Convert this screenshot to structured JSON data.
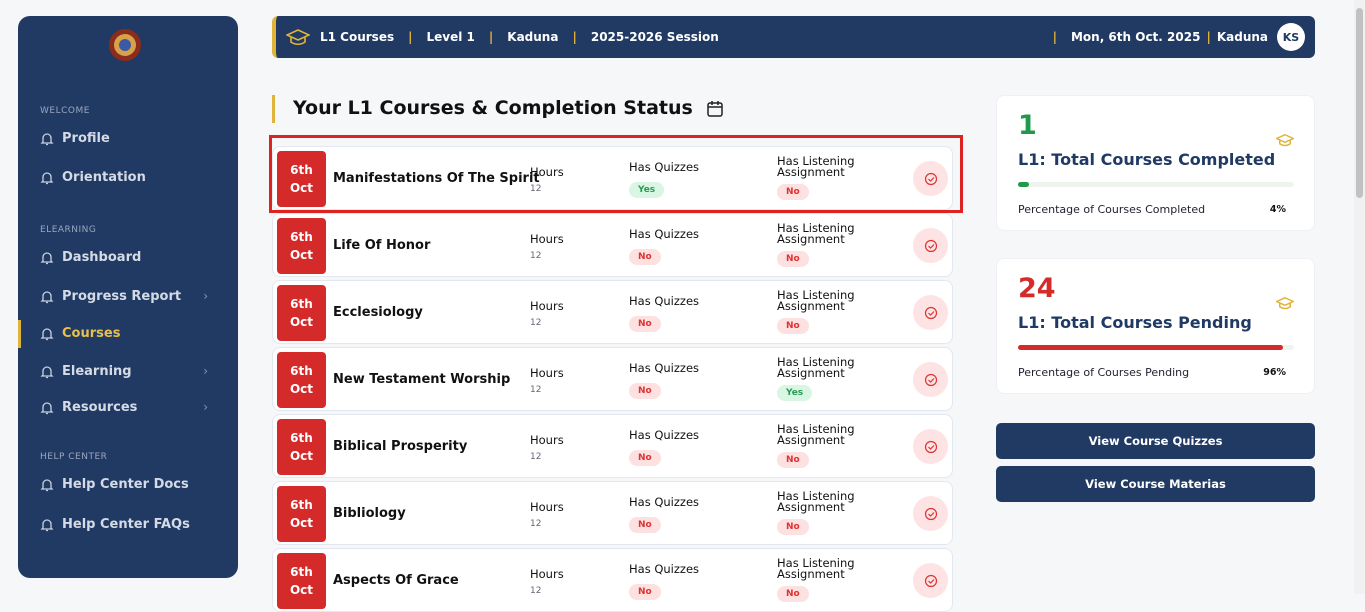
{
  "sidebar": {
    "sections": [
      {
        "heading": "WELCOME",
        "items": [
          "Profile",
          "Orientation"
        ]
      },
      {
        "heading": "ELEARNING",
        "items": [
          "Dashboard",
          "Progress Report",
          "Courses",
          "Elearning",
          "Resources"
        ]
      },
      {
        "heading": "HELP CENTER",
        "items": [
          "Help Center Docs",
          "Help Center FAQs"
        ]
      }
    ]
  },
  "topbar": {
    "items": [
      "L1 Courses",
      "Level 1",
      "Kaduna",
      "2025-2026 Session"
    ],
    "date": "Mon, 6th Oct. 2025",
    "location": "Kaduna",
    "avatar": "KS"
  },
  "main": {
    "title": "Your L1 Courses & Completion Status",
    "labels": {
      "hours": "Hours",
      "quizzes": "Has Quizzes",
      "listening": "Has Listening Assignment"
    },
    "courses": [
      {
        "day": "6th",
        "month": "Oct",
        "name": "Manifestations Of The Spirit",
        "hours": 12,
        "quizzes": "Yes",
        "listening": "No"
      },
      {
        "day": "6th",
        "month": "Oct",
        "name": "Life Of Honor",
        "hours": 12,
        "quizzes": "No",
        "listening": "No"
      },
      {
        "day": "6th",
        "month": "Oct",
        "name": "Ecclesiology",
        "hours": 12,
        "quizzes": "No",
        "listening": "No"
      },
      {
        "day": "6th",
        "month": "Oct",
        "name": "New Testament Worship",
        "hours": 12,
        "quizzes": "No",
        "listening": "Yes"
      },
      {
        "day": "6th",
        "month": "Oct",
        "name": "Biblical Prosperity",
        "hours": 12,
        "quizzes": "No",
        "listening": "No"
      },
      {
        "day": "6th",
        "month": "Oct",
        "name": "Bibliology",
        "hours": 12,
        "quizzes": "No",
        "listening": "No"
      },
      {
        "day": "6th",
        "month": "Oct",
        "name": "Aspects Of Grace",
        "hours": 12,
        "quizzes": "No",
        "listening": "No"
      }
    ]
  },
  "stats": [
    {
      "value": 1,
      "label": "L1: Total Courses Completed",
      "percent_label": "Percentage of Courses Completed",
      "percent": {
        "value": 4,
        "label": "4%"
      }
    },
    {
      "value": 24,
      "label": "L1: Total Courses Pending",
      "percent_label": "Percentage of Courses Pending",
      "percent": {
        "value": 96,
        "label": "96%"
      }
    }
  ],
  "buttons": [
    "View Course Quizzes",
    "View Course Materias"
  ]
}
